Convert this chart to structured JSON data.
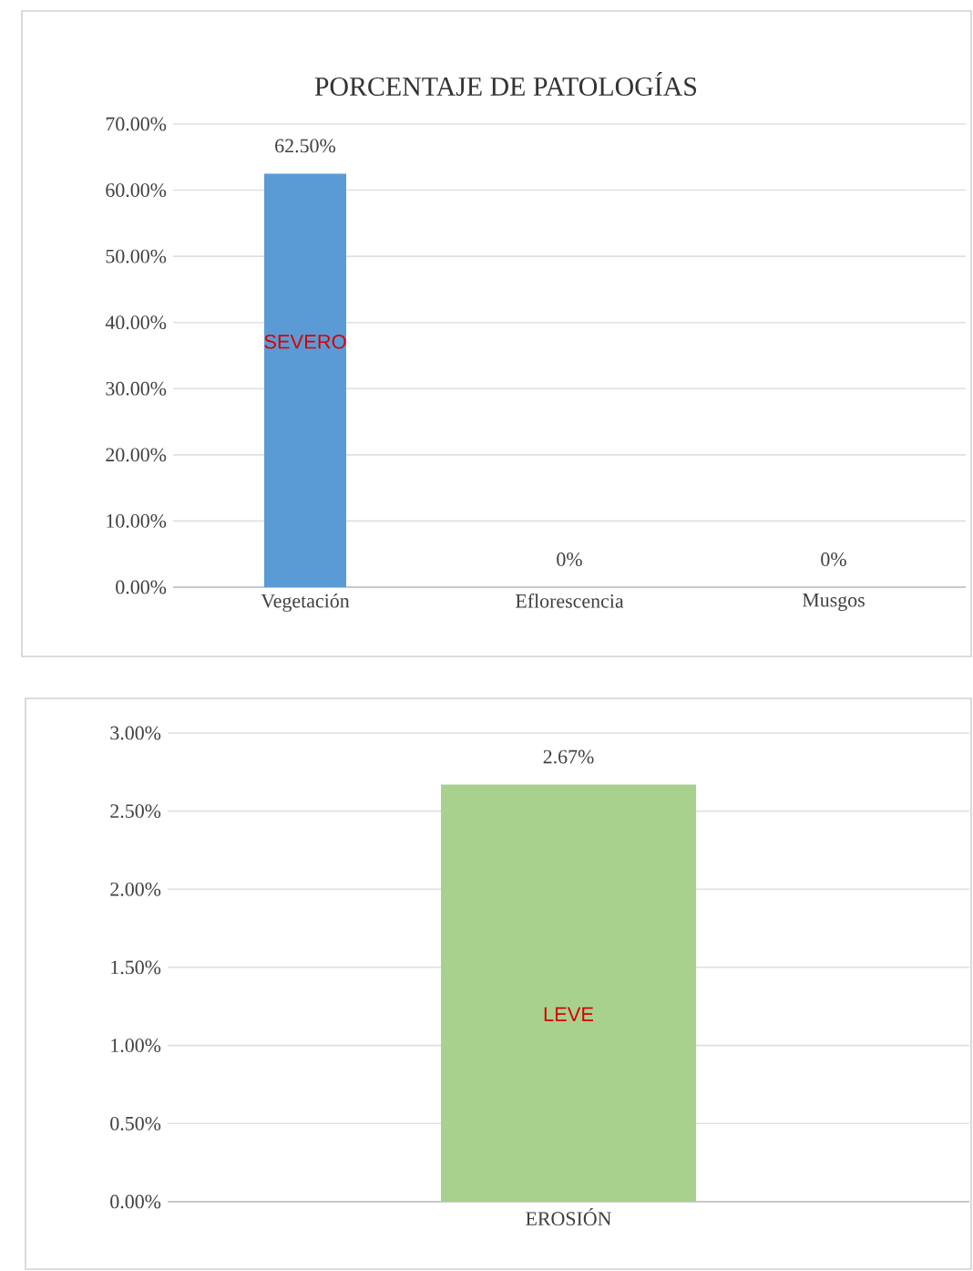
{
  "chart_data": [
    {
      "type": "bar",
      "title": "PORCENTAJE DE PATOLOGÍAS",
      "categories": [
        "Vegetación",
        "Eflorescencia",
        "Musgos"
      ],
      "values": [
        62.5,
        0,
        0
      ],
      "color": "#5b9bd5",
      "value_labels": [
        "62.50%",
        "0%",
        "0%"
      ],
      "ylim": [
        0,
        70
      ],
      "yticks": [
        {
          "value": 0,
          "label": "0.00%"
        },
        {
          "value": 10,
          "label": "10.00%"
        },
        {
          "value": 20,
          "label": "20.00%"
        },
        {
          "value": 30,
          "label": "30.00%"
        },
        {
          "value": 40,
          "label": "40.00%"
        },
        {
          "value": 50,
          "label": "50.00%"
        },
        {
          "value": 60,
          "label": "60.00%"
        },
        {
          "value": 70,
          "label": "70.00%"
        }
      ],
      "grid": "y",
      "annotations": [
        "SEVERO"
      ]
    },
    {
      "type": "bar",
      "categories": [
        "EROSIÓN"
      ],
      "values": [
        2.67
      ],
      "color": "#a9d18e",
      "value_labels": [
        "2.67%"
      ],
      "ylim": [
        0,
        3
      ],
      "yticks": [
        {
          "value": 0,
          "label": "0.00%"
        },
        {
          "value": 0.5,
          "label": "0.50%"
        },
        {
          "value": 1,
          "label": "1.00%"
        },
        {
          "value": 1.5,
          "label": "1.50%"
        },
        {
          "value": 2,
          "label": "2.00%"
        },
        {
          "value": 2.5,
          "label": "2.50%"
        },
        {
          "value": 3,
          "label": "3.00%"
        }
      ],
      "grid": "y",
      "annotations": [
        "LEVE"
      ]
    }
  ]
}
